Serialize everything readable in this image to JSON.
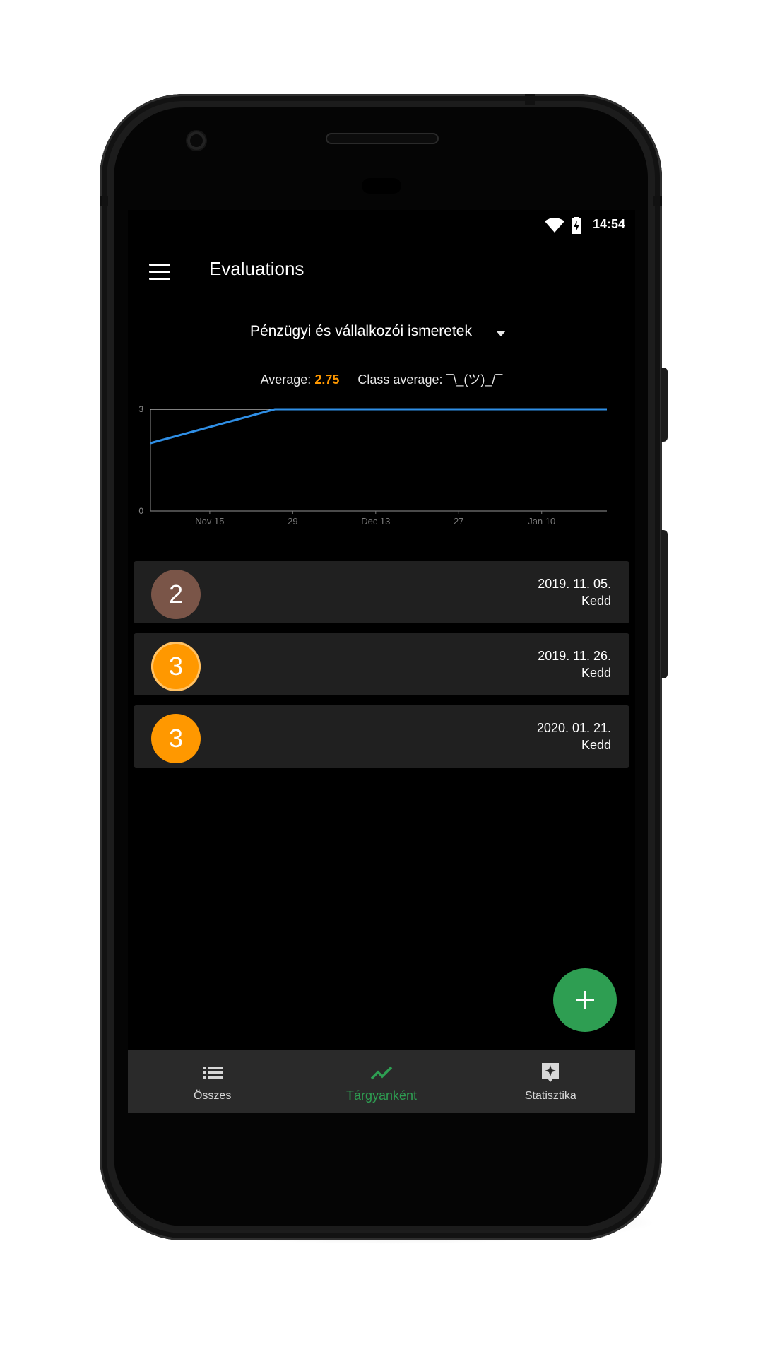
{
  "status_bar": {
    "time": "14:54"
  },
  "app_bar": {
    "title": "Evaluations"
  },
  "subject": {
    "selected": "Pénzügyi és vállalkozói ismeretek"
  },
  "averages": {
    "average_label": "Average:",
    "average_value": "2.75",
    "class_average_label": "Class average:",
    "class_average_value": "¯\\_(ツ)_/¯"
  },
  "chart_data": {
    "type": "line",
    "title": "",
    "xlabel": "",
    "ylabel": "",
    "x_tick_labels": [
      "Nov 15",
      "29",
      "Dec 13",
      "27",
      "Jan 10"
    ],
    "y_tick_labels": [
      "0",
      "3"
    ],
    "ylim": [
      0,
      3
    ],
    "xlim": [
      "2019-11-05",
      "2020-01-21"
    ],
    "series": [
      {
        "color": "#2f8fe6",
        "x": [
          "2019-11-05",
          "2019-11-26",
          "2020-01-21"
        ],
        "y": [
          2,
          3,
          3
        ]
      }
    ],
    "reference_line": {
      "y": 3,
      "color": "#cccccc"
    }
  },
  "evaluations": [
    {
      "grade": "2",
      "date": "2019. 11. 05.",
      "day": "Kedd",
      "color": "#7a5548"
    },
    {
      "grade": "3",
      "date": "2019. 11. 26.",
      "day": "Kedd",
      "color": "#ff9800"
    },
    {
      "grade": "3",
      "date": "2020. 01. 21.",
      "day": "Kedd",
      "color": "#ff9800"
    }
  ],
  "bottom_nav": {
    "items": [
      {
        "label": "Összes",
        "icon": "list-icon",
        "active": false
      },
      {
        "label": "Tárgyanként",
        "icon": "trending-up-icon",
        "active": true
      },
      {
        "label": "Statisztika",
        "icon": "star-card-icon",
        "active": false
      }
    ]
  },
  "colors": {
    "accent": "#2e9e52",
    "grade_orange": "#ff9800",
    "grade_brown": "#7a5548",
    "chart_line": "#2f8fe6"
  }
}
